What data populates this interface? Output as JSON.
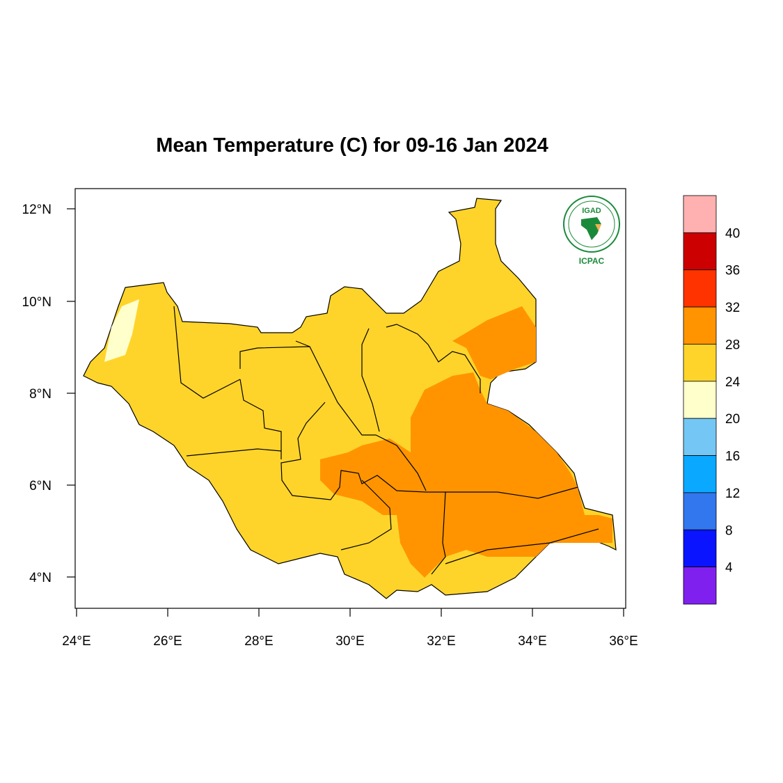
{
  "title": "Mean Temperature (C) for 09-16 Jan 2024",
  "lat_ticks": [
    "12°N",
    "10°N",
    "8°N",
    "6°N",
    "4°N"
  ],
  "lon_ticks": [
    "24°E",
    "26°E",
    "28°E",
    "30°E",
    "32°E",
    "34°E",
    "36°E"
  ],
  "logo": {
    "top_text": "IGAD",
    "bottom_text": "ICPAC"
  },
  "colorbar": {
    "labels": [
      "40",
      "36",
      "32",
      "28",
      "24",
      "20",
      "16",
      "12",
      "8",
      "4"
    ],
    "colors": [
      "#ffb0b0",
      "#cc0000",
      "#ff3300",
      "#ff9400",
      "#ffd42a",
      "#ffffcc",
      "#74c7f5",
      "#0aa9ff",
      "#3377ee",
      "#0a14ff",
      "#8020ee"
    ]
  },
  "fill_colors": {
    "warm": "#ffd42a",
    "hot": "#ff9400",
    "mild": "#ffffcc"
  }
}
